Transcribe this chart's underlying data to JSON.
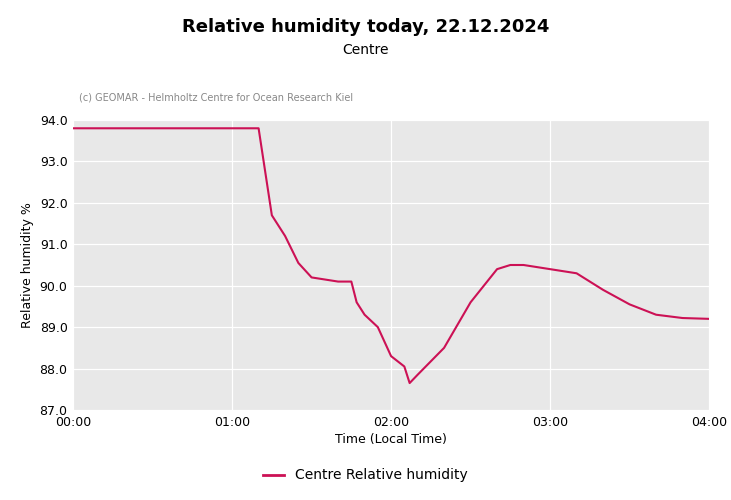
{
  "title": "Relative humidity today, 22.12.2024",
  "subtitle": "Centre",
  "copyright": "(c) GEOMAR - Helmholtz Centre for Ocean Research Kiel",
  "xlabel": "Time (Local Time)",
  "ylabel": "Relative humidity %",
  "legend_label": "Centre Relative humidity",
  "line_color": "#cc1155",
  "plot_bg_color": "#e8e8e8",
  "ylim": [
    87.0,
    94.0
  ],
  "yticks": [
    87.0,
    88.0,
    89.0,
    90.0,
    91.0,
    92.0,
    93.0,
    94.0
  ],
  "xlim_hours": [
    0,
    4
  ],
  "xtick_hours": [
    0,
    1,
    2,
    3,
    4
  ],
  "xtick_labels": [
    "00:00",
    "01:00",
    "02:00",
    "03:00",
    "04:00"
  ],
  "time_minutes": [
    0,
    10,
    20,
    30,
    40,
    50,
    60,
    70,
    75,
    80,
    85,
    90,
    95,
    100,
    105,
    107,
    110,
    115,
    120,
    125,
    127,
    130,
    140,
    150,
    160,
    165,
    170,
    175,
    180,
    190,
    200,
    210,
    220,
    230,
    240
  ],
  "humidity": [
    93.8,
    93.8,
    93.8,
    93.8,
    93.8,
    93.8,
    93.8,
    93.8,
    91.7,
    91.2,
    90.55,
    90.2,
    90.15,
    90.1,
    90.1,
    89.6,
    89.3,
    89.0,
    88.3,
    88.05,
    87.65,
    87.85,
    88.5,
    89.6,
    90.4,
    90.5,
    90.5,
    90.45,
    90.4,
    90.3,
    89.9,
    89.55,
    89.3,
    89.22,
    89.2
  ]
}
